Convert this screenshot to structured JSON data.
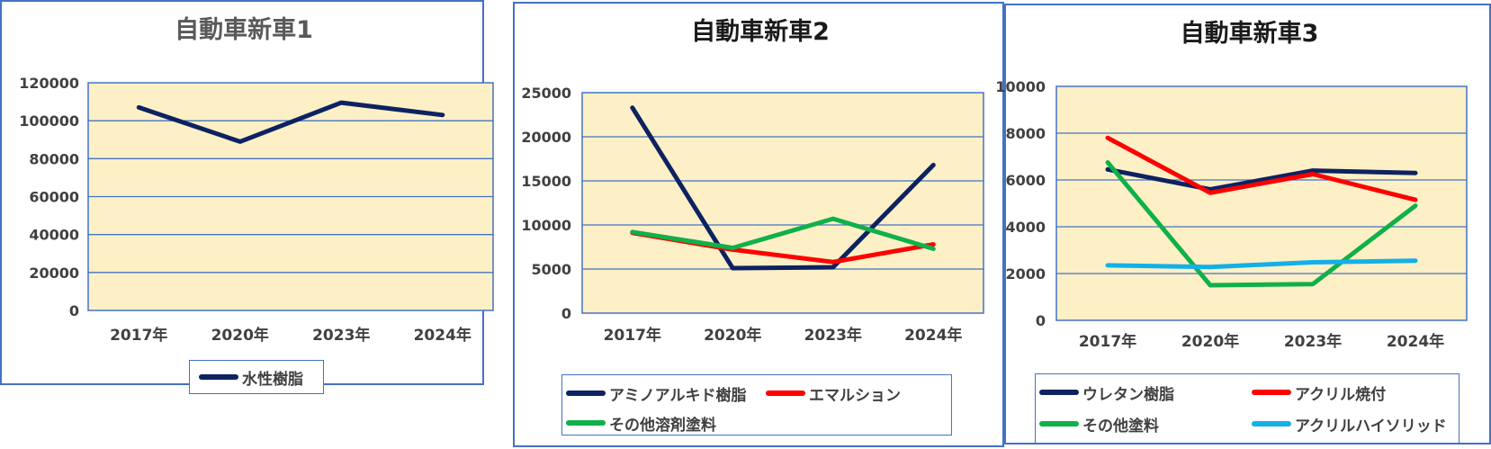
{
  "chart_data": [
    {
      "type": "line",
      "title": "自動車新車1",
      "categories": [
        "2017年",
        "2020年",
        "2023年",
        "2024年"
      ],
      "ylim": [
        0,
        120000
      ],
      "yticks": [
        "0",
        "20000",
        "40000",
        "60000",
        "80000",
        "100000",
        "120000"
      ],
      "grid": true,
      "legend_position": "bottom",
      "series": [
        {
          "name": "水性樹脂",
          "color": "#0d2261",
          "values": [
            107000,
            89000,
            109500,
            103000
          ]
        }
      ]
    },
    {
      "type": "line",
      "title": "自動車新車2",
      "categories": [
        "2017年",
        "2020年",
        "2023年",
        "2024年"
      ],
      "ylim": [
        0,
        25000
      ],
      "yticks": [
        "0",
        "5000",
        "10000",
        "15000",
        "20000",
        "25000"
      ],
      "grid": true,
      "legend_position": "bottom",
      "series": [
        {
          "name": "アミノアルキド樹脂",
          "color": "#0d2261",
          "values": [
            23300,
            5100,
            5200,
            16800
          ]
        },
        {
          "name": "エマルション",
          "color": "#ff0000",
          "values": [
            9100,
            7200,
            5800,
            7800
          ]
        },
        {
          "name": "その他溶剤塗料",
          "color": "#10b04a",
          "values": [
            9200,
            7400,
            10700,
            7300
          ]
        }
      ]
    },
    {
      "type": "line",
      "title": "自動車新車3",
      "categories": [
        "2017年",
        "2020年",
        "2023年",
        "2024年"
      ],
      "ylim": [
        0,
        10000
      ],
      "yticks": [
        "0",
        "2000",
        "4000",
        "6000",
        "8000",
        "10000"
      ],
      "grid": true,
      "legend_position": "bottom",
      "series": [
        {
          "name": "ウレタン樹脂",
          "color": "#0d2261",
          "values": [
            6450,
            5600,
            6400,
            6300
          ]
        },
        {
          "name": "アクリル焼付",
          "color": "#ff0000",
          "values": [
            7800,
            5450,
            6250,
            5150
          ]
        },
        {
          "name": "その他塗料",
          "color": "#10b04a",
          "values": [
            6750,
            1500,
            1550,
            4900
          ]
        },
        {
          "name": "アクリルハイソリッド",
          "color": "#12b0e8",
          "values": [
            2350,
            2280,
            2480,
            2550
          ]
        }
      ]
    }
  ],
  "colors": {
    "plot_background": "#fdf0c6",
    "grid": "#4472c4",
    "frame": "#4472c4",
    "title_chart1": "#595959",
    "title_other": "#1a1a1a",
    "tick_text": "#404040"
  }
}
